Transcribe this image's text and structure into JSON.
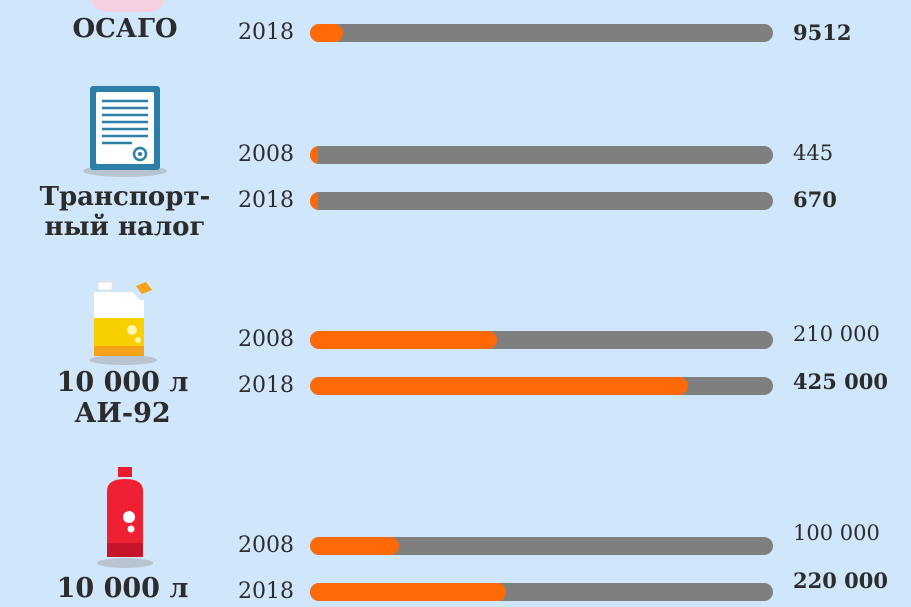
{
  "colors": {
    "background": "#cfe6fb",
    "bar_track": "#7f7f7f",
    "bar_fill": "#ff6a07"
  },
  "chart_data": {
    "type": "bar",
    "orientation": "horizontal",
    "groups": [
      {
        "label": "ОСАГО",
        "icon": "insurance-icon",
        "bars": [
          {
            "year": "2018",
            "value": 9512,
            "value_label": "9512",
            "bold": true
          }
        ]
      },
      {
        "label_lines": [
          "Транспорт-",
          "ный налог"
        ],
        "icon": "document-icon",
        "bars": [
          {
            "year": "2008",
            "value": 445,
            "value_label": "445",
            "bold": false
          },
          {
            "year": "2018",
            "value": 670,
            "value_label": "670",
            "bold": true
          }
        ]
      },
      {
        "label_lines": [
          "10 000 л",
          "АИ-92"
        ],
        "icon": "fuel-canister-icon",
        "bars": [
          {
            "year": "2008",
            "value": 210000,
            "value_label": "210 000",
            "bold": false
          },
          {
            "year": "2018",
            "value": 425000,
            "value_label": "425 000",
            "bold": true
          }
        ]
      },
      {
        "label_lines": [
          "10 000 л"
        ],
        "icon": "gas-cylinder-icon",
        "bars": [
          {
            "year": "2008",
            "value": 100000,
            "value_label": "100 000",
            "bold": false
          },
          {
            "year": "2018",
            "value": 220000,
            "value_label": "220 000",
            "bold": true
          }
        ]
      }
    ]
  }
}
